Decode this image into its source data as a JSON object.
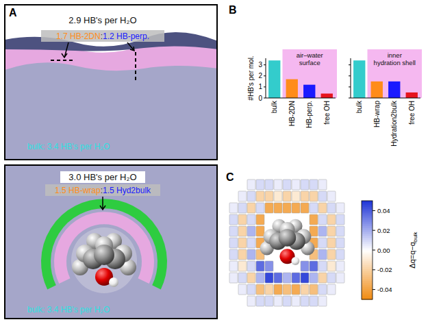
{
  "panel_labels": [
    "A",
    "B",
    "C"
  ],
  "panel_a": {
    "surface": {
      "total": "2.9 HB's per H₂O",
      "split": [
        "1.7 HB-2DN",
        ":",
        "1.2 HB-perp."
      ],
      "bulk": "bulk: 3.4 HB's per H₂O"
    },
    "solute": {
      "total": "3.0 HB's per H₂O",
      "split": [
        "1.5 HB-wrap",
        ":",
        "1.5 Hyd2bulk"
      ],
      "bulk": "bulk: 3.4 HB's per H₂O"
    }
  },
  "chart_data": [
    {
      "type": "bar",
      "categories": [
        "bulk",
        "HB-2DN",
        "HB-perp.",
        "free OH"
      ],
      "values": [
        3.4,
        1.7,
        1.2,
        0.4
      ],
      "colors": [
        "#33cccc",
        "#ff8c1a",
        "#1a1aff",
        "#e6141e"
      ],
      "y_label": "#HB's per mol.",
      "ylim": [
        0,
        3.6
      ],
      "yticks": [
        0,
        1,
        2,
        3
      ],
      "annotation": [
        "air–water",
        "surface"
      ]
    },
    {
      "type": "bar",
      "categories": [
        "bulk",
        "HB-wrap",
        "Hydration2bulk",
        "free OH"
      ],
      "values": [
        3.4,
        1.5,
        1.5,
        0.5
      ],
      "colors": [
        "#33cccc",
        "#ff8c1a",
        "#1a1aff",
        "#e6141e"
      ],
      "ylim": [
        0,
        3.6
      ],
      "yticks": [
        0,
        1,
        2,
        3
      ],
      "tick_labels": "x",
      "annotation": [
        "inner",
        "hydration shell"
      ]
    }
  ],
  "panel_c": {
    "colorbar": {
      "label": "Δq=q−q",
      "label_subscript": "bulk",
      "range": [
        -0.05,
        0.05
      ],
      "ticks": [
        -0.04,
        -0.02,
        {
          "value": 0,
          "label": "0.00"
        },
        0.02,
        0.04
      ]
    },
    "cells": [
      [
        null,
        null,
        0.005,
        0.01,
        0.01,
        0.005,
        0.01,
        0.005,
        0.01,
        0.01,
        0.005,
        null,
        null
      ],
      [
        null,
        0.005,
        0.01,
        -0.02,
        -0.02,
        -0.01,
        -0.02,
        -0.01,
        -0.02,
        -0.02,
        0.01,
        0.005,
        null
      ],
      [
        0.005,
        0.01,
        -0.02,
        0.01,
        -0.04,
        -0.04,
        -0.04,
        -0.04,
        -0.04,
        0.01,
        -0.02,
        0.01,
        0.005
      ],
      [
        0.01,
        -0.02,
        0.01,
        -0.04,
        null,
        null,
        null,
        null,
        null,
        -0.04,
        0.01,
        -0.02,
        0.01
      ],
      [
        0.01,
        -0.02,
        0.02,
        -0.04,
        null,
        null,
        null,
        null,
        null,
        -0.04,
        0.02,
        -0.02,
        0.01
      ],
      [
        0.01,
        -0.02,
        0.01,
        -0.04,
        null,
        null,
        null,
        null,
        null,
        -0.04,
        0.01,
        -0.02,
        0.01
      ],
      [
        0.01,
        -0.02,
        0.02,
        -0.03,
        null,
        null,
        null,
        null,
        null,
        -0.03,
        0.02,
        -0.02,
        0.01
      ],
      [
        0.005,
        -0.01,
        0.01,
        0.04,
        0.03,
        null,
        null,
        null,
        0.03,
        0.04,
        0.01,
        -0.01,
        0.005
      ],
      [
        0.005,
        0.01,
        -0.02,
        0.02,
        0.05,
        0.04,
        0.02,
        0.04,
        0.05,
        0.02,
        -0.02,
        0.01,
        0.005
      ],
      [
        null,
        0.005,
        0.01,
        -0.03,
        -0.02,
        -0.04,
        -0.03,
        -0.04,
        -0.02,
        -0.03,
        0.01,
        0.005,
        null
      ],
      [
        null,
        null,
        0.005,
        0.01,
        0.01,
        0.005,
        0.01,
        0.005,
        0.01,
        0.01,
        0.005,
        null,
        null
      ]
    ]
  }
}
